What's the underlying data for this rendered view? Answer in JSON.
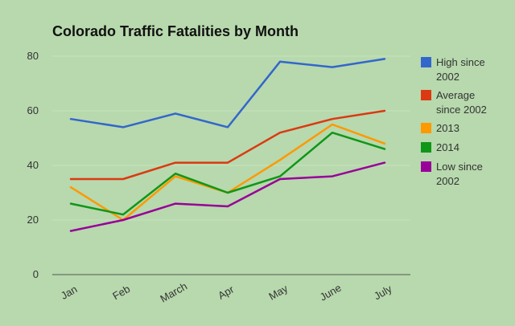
{
  "chart_data": {
    "type": "line",
    "title": "Colorado Traffic Fatalities by Month",
    "xlabel": "",
    "ylabel": "",
    "categories": [
      "Jan",
      "Feb",
      "March",
      "Apr",
      "May",
      "June",
      "July"
    ],
    "yticks": [
      0,
      20,
      40,
      60,
      80
    ],
    "ylim": [
      0,
      82
    ],
    "grid": true,
    "legend_position": "right",
    "series": [
      {
        "key": "high",
        "name": "High since 2002",
        "label_lines": [
          "High since",
          "2002"
        ],
        "color": "#3366cc",
        "values": [
          57,
          54,
          59,
          54,
          78,
          76,
          79
        ]
      },
      {
        "key": "average",
        "name": "Average since 2002",
        "label_lines": [
          "Average",
          "since 2002"
        ],
        "color": "#dc3912",
        "values": [
          35,
          35,
          41,
          41,
          52,
          57,
          60
        ]
      },
      {
        "key": "y2013",
        "name": "2013",
        "label_lines": [
          "2013"
        ],
        "color": "#ff9900",
        "values": [
          32,
          20,
          36,
          30,
          42,
          55,
          48
        ]
      },
      {
        "key": "y2014",
        "name": "2014",
        "label_lines": [
          "2014"
        ],
        "color": "#109618",
        "values": [
          26,
          22,
          37,
          30,
          36,
          52,
          46
        ]
      },
      {
        "key": "low",
        "name": "Low since 2002",
        "label_lines": [
          "Low since",
          "2002"
        ],
        "color": "#990099",
        "values": [
          16,
          20,
          26,
          25,
          35,
          36,
          41
        ]
      }
    ]
  }
}
